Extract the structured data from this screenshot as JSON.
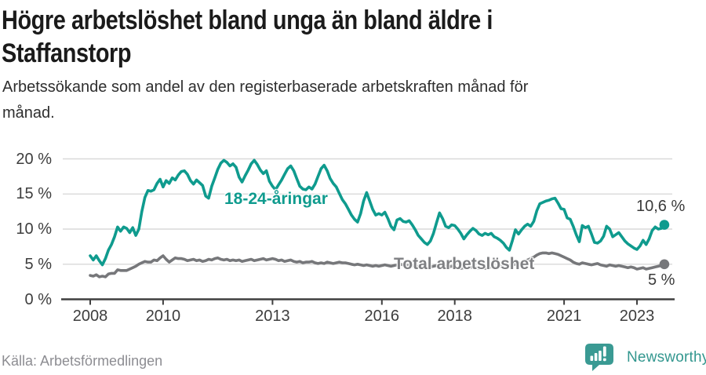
{
  "header": {
    "title_lines": [
      "Högre arbetslöshet bland unga än bland äldre i",
      "Staffanstorp"
    ],
    "subtitle_lines": [
      "Arbetssökande som andel av den registerbaserade arbetskraften månad för",
      "månad."
    ]
  },
  "chart_data": {
    "type": "line",
    "x_start_year": 2008,
    "x_frequency": "monthly",
    "x_range": [
      2008.0,
      2023.75
    ],
    "x_tick_years": [
      2008,
      2010,
      2013,
      2016,
      2018,
      2021,
      2023
    ],
    "y_ticks": [
      "0 %",
      "5 %",
      "10 %",
      "15 %",
      "20 %"
    ],
    "y_tick_values": [
      0,
      5,
      10,
      15,
      20
    ],
    "ylim": [
      0,
      21.5
    ],
    "grid": true,
    "ylabel": "",
    "xlabel": "",
    "series": [
      {
        "name": "18-24-åringar",
        "color": "#0f9b8e",
        "end_label": "10,6 %",
        "end_value": 10.6,
        "values": [
          6.2,
          5.6,
          6.2,
          5.5,
          4.9,
          5.8,
          7.0,
          7.8,
          8.9,
          10.3,
          9.7,
          10.3,
          10.1,
          9.5,
          10.2,
          9.1,
          10.0,
          12.5,
          14.5,
          15.5,
          15.4,
          15.6,
          16.5,
          17.1,
          16.0,
          16.9,
          16.5,
          17.3,
          17.0,
          17.7,
          18.2,
          18.3,
          17.8,
          16.9,
          16.4,
          17.0,
          16.6,
          16.2,
          14.7,
          14.4,
          16.1,
          17.3,
          18.5,
          19.4,
          19.8,
          19.5,
          19.0,
          19.3,
          18.8,
          17.4,
          16.7,
          17.6,
          18.4,
          19.3,
          19.8,
          19.2,
          18.4,
          17.9,
          18.3,
          16.8,
          16.1,
          15.6,
          16.3,
          17.0,
          17.8,
          18.6,
          19.0,
          18.3,
          17.2,
          16.1,
          15.7,
          15.6,
          16.0,
          15.7,
          16.4,
          17.5,
          18.6,
          19.1,
          18.3,
          17.2,
          16.5,
          16.0,
          15.1,
          14.2,
          13.6,
          12.8,
          12.0,
          11.4,
          11.0,
          12.2,
          14.0,
          15.2,
          14.0,
          12.8,
          12.0,
          12.2,
          12.0,
          12.4,
          11.5,
          10.4,
          9.9,
          11.3,
          11.5,
          11.1,
          11.0,
          11.2,
          10.6,
          9.9,
          9.1,
          8.6,
          8.1,
          7.8,
          8.3,
          9.4,
          10.9,
          12.3,
          11.5,
          10.4,
          10.2,
          10.6,
          10.5,
          10.0,
          9.4,
          8.6,
          9.2,
          9.7,
          10.1,
          9.8,
          9.3,
          9.1,
          9.4,
          9.2,
          9.4,
          8.9,
          8.7,
          8.4,
          8.0,
          7.4,
          7.0,
          8.4,
          9.9,
          9.3,
          9.9,
          10.4,
          10.7,
          10.4,
          11.1,
          12.6,
          13.6,
          13.8,
          14.0,
          14.1,
          14.3,
          14.4,
          13.7,
          12.9,
          12.8,
          11.6,
          11.4,
          10.4,
          9.2,
          8.2,
          10.5,
          10.2,
          10.4,
          9.3,
          8.1,
          8.0,
          8.3,
          9.0,
          10.4,
          10.0,
          8.9,
          9.2,
          9.5,
          8.9,
          8.3,
          7.9,
          7.6,
          7.3,
          7.1,
          7.6,
          8.4,
          7.8,
          8.6,
          9.8,
          10.3,
          10.0,
          10.1,
          10.6
        ]
      },
      {
        "name": "Total arbetslöshet",
        "color": "#76777a",
        "end_label": "5 %",
        "end_value": 5,
        "values": [
          3.4,
          3.3,
          3.5,
          3.2,
          3.3,
          3.2,
          3.6,
          3.7,
          3.7,
          4.2,
          4.1,
          4.1,
          4.1,
          4.3,
          4.5,
          4.7,
          5.0,
          5.2,
          5.4,
          5.3,
          5.3,
          5.6,
          5.5,
          5.9,
          6.2,
          5.7,
          5.3,
          5.6,
          5.9,
          5.8,
          5.8,
          5.7,
          5.5,
          5.6,
          5.7,
          5.5,
          5.6,
          5.4,
          5.5,
          5.7,
          5.6,
          5.8,
          5.9,
          5.7,
          5.6,
          5.7,
          5.5,
          5.6,
          5.5,
          5.6,
          5.4,
          5.5,
          5.6,
          5.7,
          5.5,
          5.6,
          5.7,
          5.8,
          5.6,
          5.7,
          5.8,
          5.7,
          5.5,
          5.6,
          5.4,
          5.5,
          5.6,
          5.4,
          5.3,
          5.4,
          5.2,
          5.3,
          5.3,
          5.4,
          5.2,
          5.1,
          5.2,
          5.1,
          5.3,
          5.2,
          5.1,
          5.2,
          5.3,
          5.2,
          5.2,
          5.1,
          5.0,
          4.9,
          5.0,
          4.9,
          4.8,
          4.9,
          4.8,
          4.7,
          4.8,
          4.7,
          4.8,
          4.9,
          4.8,
          4.7,
          4.8,
          4.9,
          5.0,
          4.9,
          4.8,
          4.9,
          4.8,
          4.7,
          4.6,
          4.7,
          4.6,
          4.5,
          4.6,
          4.7,
          4.8,
          4.9,
          4.8,
          4.7,
          4.6,
          4.7,
          4.6,
          4.5,
          4.4,
          4.5,
          4.4,
          4.5,
          4.6,
          4.5,
          4.4,
          4.5,
          4.4,
          4.5,
          4.6,
          4.5,
          4.6,
          4.7,
          4.6,
          4.7,
          4.8,
          4.9,
          5.0,
          5.1,
          5.2,
          5.4,
          5.6,
          5.8,
          6.0,
          6.3,
          6.5,
          6.6,
          6.6,
          6.5,
          6.6,
          6.5,
          6.4,
          6.2,
          6.0,
          5.8,
          5.6,
          5.3,
          5.1,
          5.0,
          5.2,
          5.1,
          5.0,
          4.9,
          5.0,
          5.1,
          4.9,
          4.8,
          4.7,
          4.9,
          4.8,
          4.7,
          4.8,
          4.7,
          4.6,
          4.5,
          4.6,
          4.5,
          4.3,
          4.4,
          4.5,
          4.3,
          4.4,
          4.5,
          4.6,
          4.7,
          4.8,
          5.0
        ]
      }
    ]
  },
  "footer": {
    "source": "Källa: Arbetsförmedlingen",
    "brand": "Newsworthy",
    "brand_color": "#33978f"
  }
}
